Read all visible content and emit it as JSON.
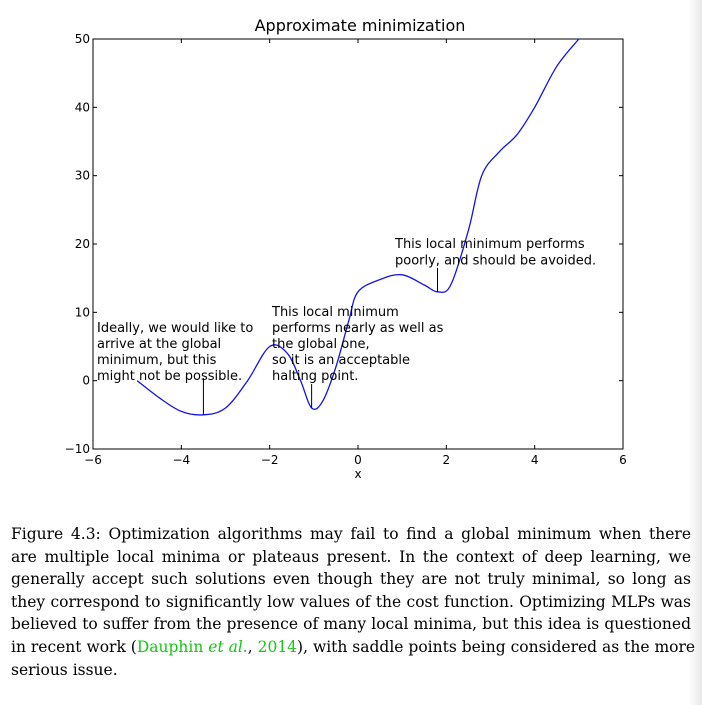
{
  "chart_data": {
    "type": "line",
    "title": "Approximate minimization",
    "xlabel": "x",
    "ylabel": "",
    "xlim": [
      -6,
      6
    ],
    "ylim": [
      -10,
      50
    ],
    "x_ticks": [
      -6,
      -4,
      -2,
      0,
      2,
      4,
      6
    ],
    "y_ticks": [
      -10,
      0,
      10,
      20,
      30,
      40,
      50
    ],
    "x_tick_labels": [
      "−6",
      "−4",
      "−2",
      "0",
      "2",
      "4",
      "6"
    ],
    "y_tick_labels": [
      "−10",
      "0",
      "10",
      "20",
      "30",
      "40",
      "50"
    ],
    "grid": false,
    "line_color": "#1414e6",
    "series": [
      {
        "x": [
          -5,
          -4.5,
          -4,
          -3.5,
          -3,
          -2.5,
          -2,
          -1.6,
          -1.3,
          -1.05,
          -0.8,
          -0.5,
          -0.2,
          0,
          0.5,
          1,
          1.5,
          1.8,
          2.1,
          2.5,
          2.8,
          3.2,
          3.6,
          4,
          4.5,
          5
        ],
        "y": [
          0,
          -2.5,
          -4.5,
          -5,
          -4,
          0,
          5,
          4,
          0,
          -4,
          -3,
          2,
          9,
          13,
          14.8,
          15.5,
          14,
          13,
          14,
          22,
          30,
          33.5,
          36,
          40,
          46,
          50
        ]
      }
    ],
    "annotations": [
      {
        "lines": [
          "Ideally, we would like to",
          "arrive at the global",
          "minimum, but this",
          "might not be possible."
        ],
        "point": [
          -3.5,
          -5
        ]
      },
      {
        "lines": [
          "This local minimum",
          "performs nearly as well as",
          "the global one,",
          "so it is an acceptable",
          "halting point."
        ],
        "point": [
          -1.05,
          -4
        ]
      },
      {
        "lines": [
          "This local minimum performs",
          "poorly, and should be avoided."
        ],
        "point": [
          1.8,
          13
        ]
      }
    ]
  },
  "caption": {
    "lines": [
      "Figure 4.3: Optimization algorithms may fail to find a global minimum when there",
      "are multiple local minima or plateaus present.  In the context of deep learning, we",
      "generally accept such solutions even though they are not truly minimal, so long as",
      "they correspond to significantly low values of the cost function. Optimizing MLPs was",
      "believed to suffer from the presence of many local minima, but this idea is questioned"
    ],
    "line6_before": "in recent work (",
    "cite_author": "Dauphin ",
    "cite_etal": "et al.",
    "cite_sep": ", ",
    "cite_year": "2014",
    "line6_after": "), with saddle points being considered as the more",
    "last_line": "serious issue."
  }
}
